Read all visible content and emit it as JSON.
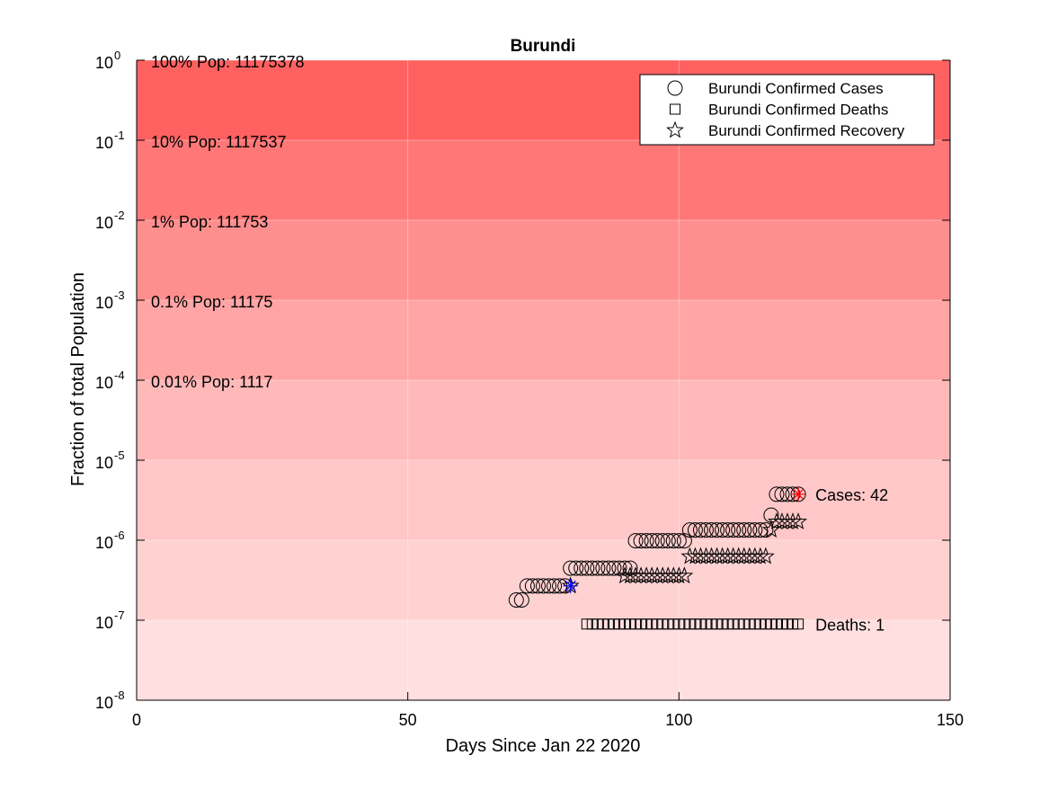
{
  "chart_data": {
    "type": "scatter",
    "title": "Burundi",
    "xlabel": "Days Since Jan 22 2020",
    "ylabel": "Fraction of total Population",
    "xlim": [
      0,
      150
    ],
    "ylim": [
      1e-08,
      1
    ],
    "yscale": "log",
    "x_ticks": [
      "0",
      "50",
      "100",
      "150"
    ],
    "y_tick_exponents": [
      "0",
      "-1",
      "-2",
      "-3",
      "-4",
      "-5",
      "-6",
      "-7",
      "-8"
    ],
    "y_tick_base": "10",
    "population": 11175378,
    "bands": [
      {
        "label": "100% Pop: 11175378",
        "from": 0.1,
        "to": 1,
        "color": "#ff6161"
      },
      {
        "label": "10% Pop: 1117537",
        "from": 0.01,
        "to": 0.1,
        "color": "#ff7777"
      },
      {
        "label": "1% Pop: 111753",
        "from": 0.001,
        "to": 0.01,
        "color": "#ff8f8f"
      },
      {
        "label": "0.1% Pop: 11175",
        "from": 0.0001,
        "to": 0.001,
        "color": "#ffa5a5"
      },
      {
        "label": "0.01% Pop: 1117",
        "from": 1e-05,
        "to": 0.0001,
        "color": "#ffb9b9"
      },
      {
        "label": "",
        "from": 1e-06,
        "to": 1e-05,
        "color": "#ffc7c7"
      },
      {
        "label": "",
        "from": 1e-07,
        "to": 1e-06,
        "color": "#ffd2d2"
      },
      {
        "label": "",
        "from": 1e-08,
        "to": 1e-07,
        "color": "#ffdfdf"
      }
    ],
    "legend": {
      "placement": "top-right",
      "entries": [
        {
          "marker": "circle",
          "label": "Burundi Confirmed Cases"
        },
        {
          "marker": "square",
          "label": "Burundi Confirmed Deaths"
        },
        {
          "marker": "star",
          "label": "Burundi Confirmed Recovery"
        }
      ]
    },
    "series": [
      {
        "name": "Burundi Confirmed Cases",
        "marker": "circle",
        "points": [
          [
            70,
            2
          ],
          [
            71,
            2
          ],
          [
            72,
            3
          ],
          [
            73,
            3
          ],
          [
            74,
            3
          ],
          [
            75,
            3
          ],
          [
            76,
            3
          ],
          [
            77,
            3
          ],
          [
            78,
            3
          ],
          [
            79,
            3
          ],
          [
            80,
            5
          ],
          [
            81,
            5
          ],
          [
            82,
            5
          ],
          [
            83,
            5
          ],
          [
            84,
            5
          ],
          [
            85,
            5
          ],
          [
            86,
            5
          ],
          [
            87,
            5
          ],
          [
            88,
            5
          ],
          [
            89,
            5
          ],
          [
            90,
            5
          ],
          [
            91,
            5
          ],
          [
            92,
            11
          ],
          [
            93,
            11
          ],
          [
            94,
            11
          ],
          [
            95,
            11
          ],
          [
            96,
            11
          ],
          [
            97,
            11
          ],
          [
            98,
            11
          ],
          [
            99,
            11
          ],
          [
            100,
            11
          ],
          [
            101,
            11
          ],
          [
            102,
            15
          ],
          [
            103,
            15
          ],
          [
            104,
            15
          ],
          [
            105,
            15
          ],
          [
            106,
            15
          ],
          [
            107,
            15
          ],
          [
            108,
            15
          ],
          [
            109,
            15
          ],
          [
            110,
            15
          ],
          [
            111,
            15
          ],
          [
            112,
            15
          ],
          [
            113,
            15
          ],
          [
            114,
            15
          ],
          [
            115,
            15
          ],
          [
            116,
            15
          ],
          [
            117,
            23
          ],
          [
            118,
            42
          ],
          [
            119,
            42
          ],
          [
            120,
            42
          ],
          [
            121,
            42
          ],
          [
            122,
            42
          ]
        ]
      },
      {
        "name": "Burundi Confirmed Deaths",
        "marker": "square",
        "points": [
          [
            83,
            1
          ],
          [
            84,
            1
          ],
          [
            85,
            1
          ],
          [
            86,
            1
          ],
          [
            87,
            1
          ],
          [
            88,
            1
          ],
          [
            89,
            1
          ],
          [
            90,
            1
          ],
          [
            91,
            1
          ],
          [
            92,
            1
          ],
          [
            93,
            1
          ],
          [
            94,
            1
          ],
          [
            95,
            1
          ],
          [
            96,
            1
          ],
          [
            97,
            1
          ],
          [
            98,
            1
          ],
          [
            99,
            1
          ],
          [
            100,
            1
          ],
          [
            101,
            1
          ],
          [
            102,
            1
          ],
          [
            103,
            1
          ],
          [
            104,
            1
          ],
          [
            105,
            1
          ],
          [
            106,
            1
          ],
          [
            107,
            1
          ],
          [
            108,
            1
          ],
          [
            109,
            1
          ],
          [
            110,
            1
          ],
          [
            111,
            1
          ],
          [
            112,
            1
          ],
          [
            113,
            1
          ],
          [
            114,
            1
          ],
          [
            115,
            1
          ],
          [
            116,
            1
          ],
          [
            117,
            1
          ],
          [
            118,
            1
          ],
          [
            119,
            1
          ],
          [
            120,
            1
          ],
          [
            121,
            1
          ],
          [
            122,
            1
          ]
        ]
      },
      {
        "name": "Burundi Confirmed Recovery",
        "marker": "star",
        "points": [
          [
            80,
            3
          ],
          [
            90,
            4
          ],
          [
            91,
            4
          ],
          [
            92,
            4
          ],
          [
            93,
            4
          ],
          [
            94,
            4
          ],
          [
            95,
            4
          ],
          [
            96,
            4
          ],
          [
            97,
            4
          ],
          [
            98,
            4
          ],
          [
            99,
            4
          ],
          [
            100,
            4
          ],
          [
            101,
            4
          ],
          [
            102,
            7
          ],
          [
            103,
            7
          ],
          [
            104,
            7
          ],
          [
            105,
            7
          ],
          [
            106,
            7
          ],
          [
            107,
            7
          ],
          [
            108,
            7
          ],
          [
            109,
            7
          ],
          [
            110,
            7
          ],
          [
            111,
            7
          ],
          [
            112,
            7
          ],
          [
            113,
            7
          ],
          [
            114,
            7
          ],
          [
            115,
            7
          ],
          [
            116,
            7
          ],
          [
            117,
            15
          ],
          [
            118,
            19
          ],
          [
            119,
            19
          ],
          [
            120,
            19
          ],
          [
            121,
            19
          ],
          [
            122,
            19
          ]
        ]
      }
    ],
    "highlights": [
      {
        "x": 80,
        "count": 3,
        "color": "#0000ff"
      },
      {
        "x": 122,
        "count": 42,
        "color": "#ff0000"
      }
    ],
    "annotations": [
      {
        "text": "Cases: 42",
        "x": 123,
        "count": 42
      },
      {
        "text": "Deaths: 1",
        "x": 123,
        "count": 1
      }
    ]
  }
}
